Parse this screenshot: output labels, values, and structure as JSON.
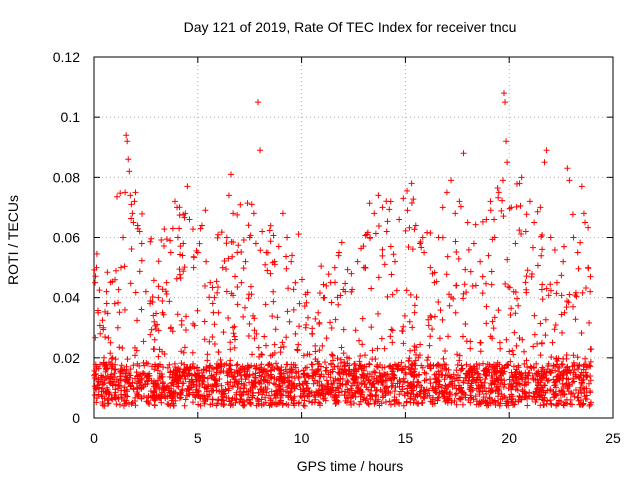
{
  "chart_data": {
    "type": "scatter",
    "title": "Day 121 of 2019, Rate Of TEC Index for receiver tncu",
    "xlabel": "GPS time / hours",
    "ylabel": "ROTI / TECUs",
    "xlim": [
      0,
      24
    ],
    "ylim": [
      0,
      0.12
    ],
    "xticks": [
      0,
      5,
      10,
      15,
      20,
      25
    ],
    "xtick_labels": [
      "0",
      "5",
      "10",
      "15",
      "20",
      "25"
    ],
    "yticks": [
      0,
      0.02,
      0.04,
      0.06,
      0.08,
      0.1,
      0.12
    ],
    "ytick_labels": [
      "0",
      "0.02",
      "0.04",
      "0.06",
      "0.08",
      "0.1",
      "0.12"
    ],
    "grid": true,
    "marker": "plus",
    "color": "#ff0000",
    "series": [
      {
        "name": "ROTI",
        "points": [
          [
            0.05,
            0.045
          ],
          [
            0.12,
            0.05
          ],
          [
            0.2,
            0.035
          ],
          [
            0.3,
            0.028
          ],
          [
            0.45,
            0.03
          ],
          [
            0.6,
            0.042
          ],
          [
            0.8,
            0.025
          ],
          [
            0.9,
            0.02
          ],
          [
            1.0,
            0.038
          ],
          [
            1.15,
            0.03
          ],
          [
            1.3,
            0.05
          ],
          [
            1.4,
            0.06
          ],
          [
            1.5,
            0.075
          ],
          [
            1.55,
            0.094
          ],
          [
            1.6,
            0.092
          ],
          [
            1.65,
            0.086
          ],
          [
            1.7,
            0.082
          ],
          [
            1.75,
            0.074
          ],
          [
            1.8,
            0.071
          ],
          [
            1.85,
            0.068
          ],
          [
            1.9,
            0.065
          ],
          [
            1.95,
            0.072
          ],
          [
            2.0,
            0.075
          ],
          [
            2.1,
            0.064
          ],
          [
            2.2,
            0.062
          ],
          [
            2.3,
            0.058
          ],
          [
            2.5,
            0.042
          ],
          [
            2.7,
            0.038
          ],
          [
            2.9,
            0.032
          ],
          [
            3.1,
            0.04
          ],
          [
            3.3,
            0.035
          ],
          [
            3.5,
            0.045
          ],
          [
            3.7,
            0.055
          ],
          [
            3.8,
            0.063
          ],
          [
            3.9,
            0.072
          ],
          [
            4.0,
            0.07
          ],
          [
            4.1,
            0.063
          ],
          [
            4.3,
            0.058
          ],
          [
            4.4,
            0.068
          ],
          [
            4.5,
            0.077
          ],
          [
            4.6,
            0.066
          ],
          [
            4.8,
            0.05
          ],
          [
            5.0,
            0.055
          ],
          [
            5.2,
            0.064
          ],
          [
            5.4,
            0.052
          ],
          [
            5.6,
            0.045
          ],
          [
            5.8,
            0.04
          ],
          [
            6.0,
            0.035
          ],
          [
            6.2,
            0.05
          ],
          [
            6.4,
            0.06
          ],
          [
            6.5,
            0.074
          ],
          [
            6.6,
            0.081
          ],
          [
            6.7,
            0.068
          ],
          [
            6.9,
            0.055
          ],
          [
            7.1,
            0.045
          ],
          [
            7.3,
            0.052
          ],
          [
            7.5,
            0.06
          ],
          [
            7.6,
            0.071
          ],
          [
            7.7,
            0.068
          ],
          [
            7.8,
            0.058
          ],
          [
            7.9,
            0.105
          ],
          [
            8.0,
            0.089
          ],
          [
            8.1,
            0.062
          ],
          [
            8.3,
            0.055
          ],
          [
            8.5,
            0.048
          ],
          [
            8.7,
            0.052
          ],
          [
            8.9,
            0.057
          ],
          [
            9.1,
            0.068
          ],
          [
            9.3,
            0.06
          ],
          [
            9.5,
            0.052
          ],
          [
            9.7,
            0.045
          ],
          [
            9.9,
            0.038
          ],
          [
            10.2,
            0.03
          ],
          [
            10.5,
            0.028
          ],
          [
            10.8,
            0.035
          ],
          [
            11.1,
            0.04
          ],
          [
            11.4,
            0.045
          ],
          [
            11.6,
            0.05
          ],
          [
            11.8,
            0.055
          ],
          [
            12.1,
            0.042
          ],
          [
            12.4,
            0.048
          ],
          [
            12.7,
            0.052
          ],
          [
            13.0,
            0.05
          ],
          [
            13.3,
            0.06
          ],
          [
            13.5,
            0.068
          ],
          [
            13.7,
            0.074
          ],
          [
            13.9,
            0.07
          ],
          [
            14.1,
            0.062
          ],
          [
            14.3,
            0.057
          ],
          [
            14.5,
            0.052
          ],
          [
            14.7,
            0.066
          ],
          [
            14.9,
            0.073
          ],
          [
            15.1,
            0.069
          ],
          [
            15.3,
            0.078
          ],
          [
            15.5,
            0.064
          ],
          [
            15.7,
            0.058
          ],
          [
            15.9,
            0.055
          ],
          [
            16.2,
            0.05
          ],
          [
            16.4,
            0.045
          ],
          [
            16.6,
            0.06
          ],
          [
            16.8,
            0.07
          ],
          [
            17.0,
            0.075
          ],
          [
            17.2,
            0.079
          ],
          [
            17.4,
            0.068
          ],
          [
            17.6,
            0.072
          ],
          [
            17.8,
            0.088
          ],
          [
            18.0,
            0.065
          ],
          [
            18.3,
            0.058
          ],
          [
            18.6,
            0.052
          ],
          [
            18.9,
            0.066
          ],
          [
            19.1,
            0.072
          ],
          [
            19.3,
            0.06
          ],
          [
            19.5,
            0.075
          ],
          [
            19.7,
            0.079
          ],
          [
            19.75,
            0.108
          ],
          [
            19.8,
            0.105
          ],
          [
            19.85,
            0.092
          ],
          [
            19.9,
            0.085
          ],
          [
            20.1,
            0.07
          ],
          [
            20.3,
            0.058
          ],
          [
            20.5,
            0.078
          ],
          [
            20.6,
            0.08
          ],
          [
            20.8,
            0.062
          ],
          [
            21.0,
            0.072
          ],
          [
            21.2,
            0.065
          ],
          [
            21.5,
            0.07
          ],
          [
            21.7,
            0.085
          ],
          [
            21.8,
            0.089
          ],
          [
            22.0,
            0.06
          ],
          [
            22.3,
            0.045
          ],
          [
            22.6,
            0.052
          ],
          [
            22.8,
            0.083
          ],
          [
            22.9,
            0.079
          ],
          [
            23.1,
            0.06
          ],
          [
            23.3,
            0.055
          ],
          [
            23.5,
            0.077
          ],
          [
            23.6,
            0.068
          ],
          [
            23.8,
            0.05
          ],
          [
            23.9,
            0.042
          ]
        ]
      }
    ]
  }
}
